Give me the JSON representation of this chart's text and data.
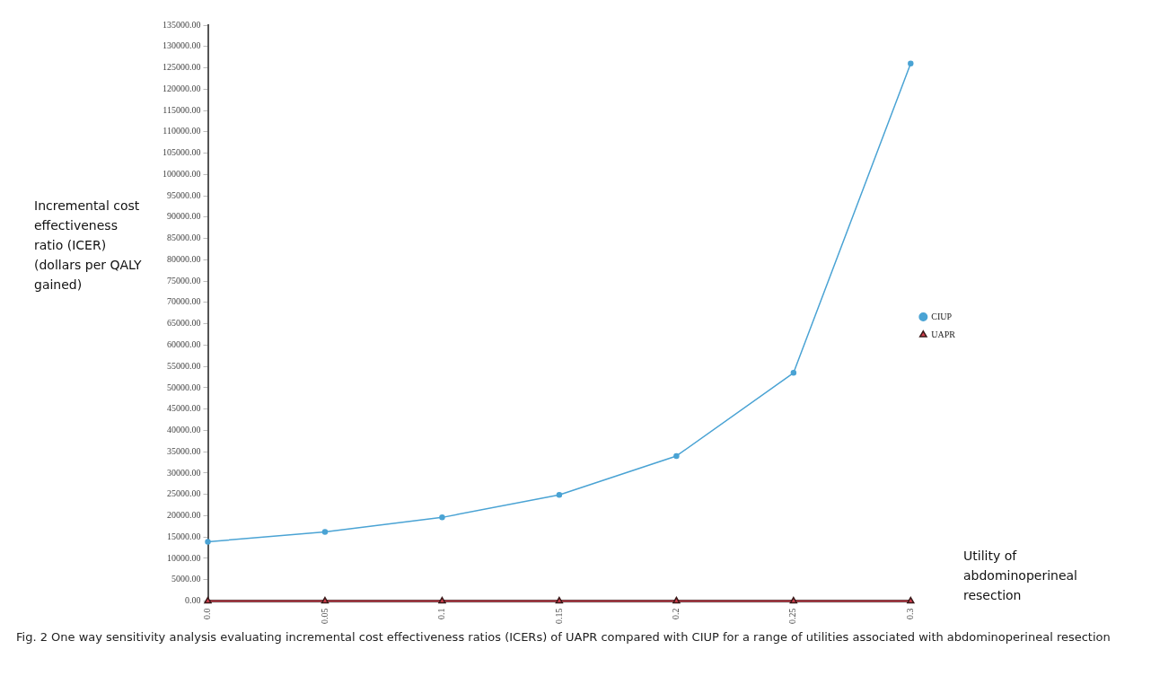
{
  "chart_data": {
    "type": "line",
    "xlabel": "Utility of abdominoperineal resection",
    "ylabel": "Incremental cost effectiveness ratio (ICER) (dollars per QALY gained)",
    "x": [
      0,
      0.05,
      0.1,
      0.15,
      0.2,
      0.25,
      0.3
    ],
    "series": [
      {
        "name": "CIUP",
        "color": "#4aa3d4",
        "marker": "circle",
        "values": [
          13900,
          16200,
          19600,
          24900,
          34000,
          53500,
          126000
        ]
      },
      {
        "name": "UAPR",
        "color": "#d9404f",
        "marker": "triangle",
        "values": [
          0,
          0,
          0,
          0,
          0,
          0,
          0
        ]
      }
    ],
    "xlim": [
      0,
      0.3
    ],
    "xticks": [
      {
        "value": 0,
        "label": "0.0"
      },
      0.05,
      0.1,
      0.15,
      0.2,
      0.25,
      0.3
    ],
    "ylim": [
      0,
      135000
    ],
    "yticks": [
      {
        "value": 0,
        "label": "0.00"
      },
      {
        "value": 5000,
        "label": "5000.00"
      },
      {
        "value": 10000,
        "label": "10000.00"
      },
      {
        "value": 15000,
        "label": "15000.00"
      },
      {
        "value": 20000,
        "label": "20000.00"
      },
      {
        "value": 25000,
        "label": "25000.00"
      },
      {
        "value": 30000,
        "label": "30000.00"
      },
      {
        "value": 35000,
        "label": "35000.00"
      },
      {
        "value": 40000,
        "label": "40000.00"
      },
      {
        "value": 45000,
        "label": "45000.00"
      },
      {
        "value": 50000,
        "label": "50000.00"
      },
      {
        "value": 55000,
        "label": "55000.00"
      },
      {
        "value": 60000,
        "label": "60000.00"
      },
      {
        "value": 65000,
        "label": "65000.00"
      },
      {
        "value": 70000,
        "label": "70000.00"
      },
      {
        "value": 75000,
        "label": "75000.00"
      },
      {
        "value": 80000,
        "label": "80000.00"
      },
      {
        "value": 85000,
        "label": "85000.00"
      },
      {
        "value": 90000,
        "label": "90000.00"
      },
      {
        "value": 95000,
        "label": "95000.00"
      },
      {
        "value": 100000,
        "label": "100000.00"
      },
      {
        "value": 105000,
        "label": "105000.00"
      },
      {
        "value": 110000,
        "label": "110000.00"
      },
      {
        "value": 115000,
        "label": "115000.00"
      },
      {
        "value": 120000,
        "label": "120000.00"
      },
      {
        "value": 125000,
        "label": "125000.00"
      },
      {
        "value": 130000,
        "label": "130000.00"
      },
      {
        "value": 135000,
        "label": "135000.00"
      }
    ],
    "grid": false,
    "legend": "right",
    "line_style": "solid",
    "annotations": [
      "Fig. 2  One way sensitivity analysis evaluating incremental cost effectiveness ratios (ICERs) of UAPR compared with CIUP for a range of utilities associated with abdominoperineal resection"
    ]
  }
}
